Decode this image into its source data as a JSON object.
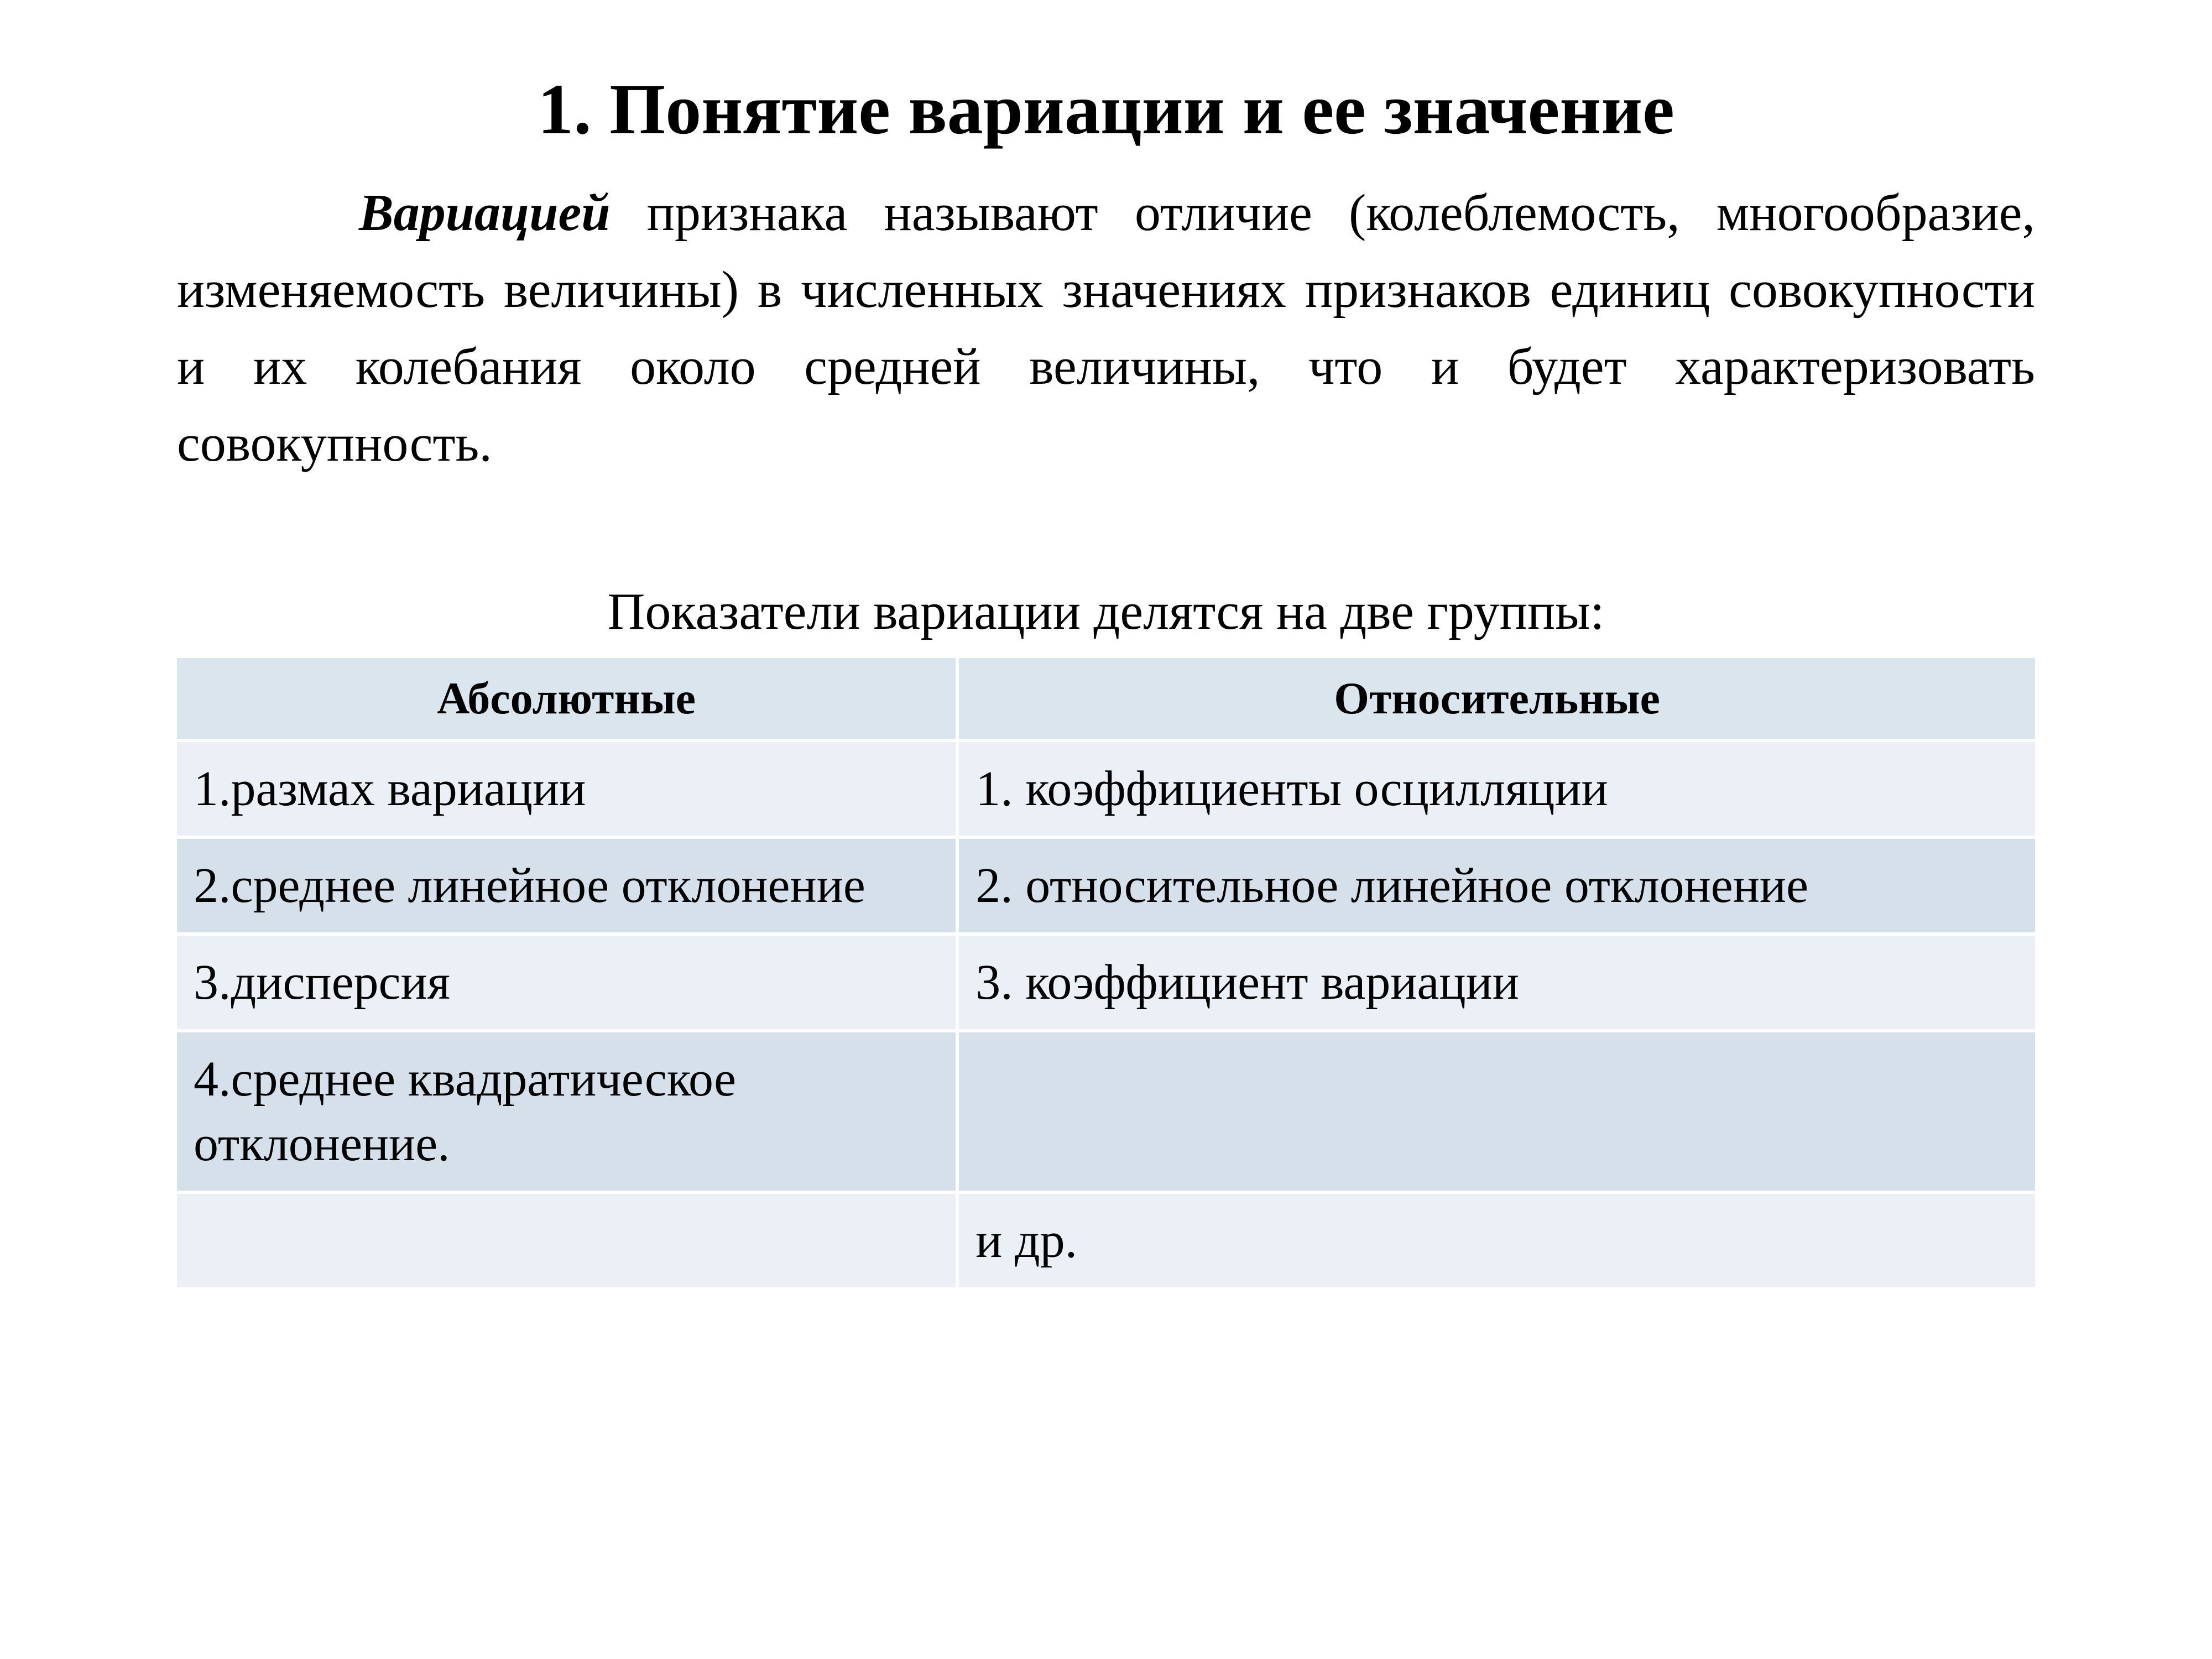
{
  "slide": {
    "title": "1. Понятие вариации и ее значение",
    "definition_term": "Вариацией",
    "definition_rest": " признака называют отличие (колеблемость, многообразие, изменяемость величины) в численных значениях признаков единиц совокупности и их колебания около средней величины, что и будет характеризовать совокупность.",
    "subheading": "Показатели вариации делятся на две группы:"
  },
  "table": {
    "columns": [
      "Абсолютные",
      "Относительные"
    ],
    "rows": [
      [
        "1.размах вариации",
        "1. коэффициенты осцилляции"
      ],
      [
        "2.среднее линейное отклонение",
        "2. относительное линейное отклонение"
      ],
      [
        "3.дисперсия",
        "3. коэффициент вариации"
      ],
      [
        "4.среднее квадратическое отклонение.",
        ""
      ],
      [
        "",
        "и др."
      ]
    ],
    "header_bg": "#dbe5ee",
    "row_odd_bg": "#eaf0f5",
    "row_even_bg": "#d5e0ea",
    "border_color": "#ffffff",
    "text_color": "#000000",
    "header_fontsize": 82,
    "cell_fontsize": 90
  },
  "typography": {
    "title_fontsize": 130,
    "body_fontsize": 94,
    "font_family": "Times New Roman"
  },
  "colors": {
    "background": "#ffffff",
    "text": "#000000"
  }
}
